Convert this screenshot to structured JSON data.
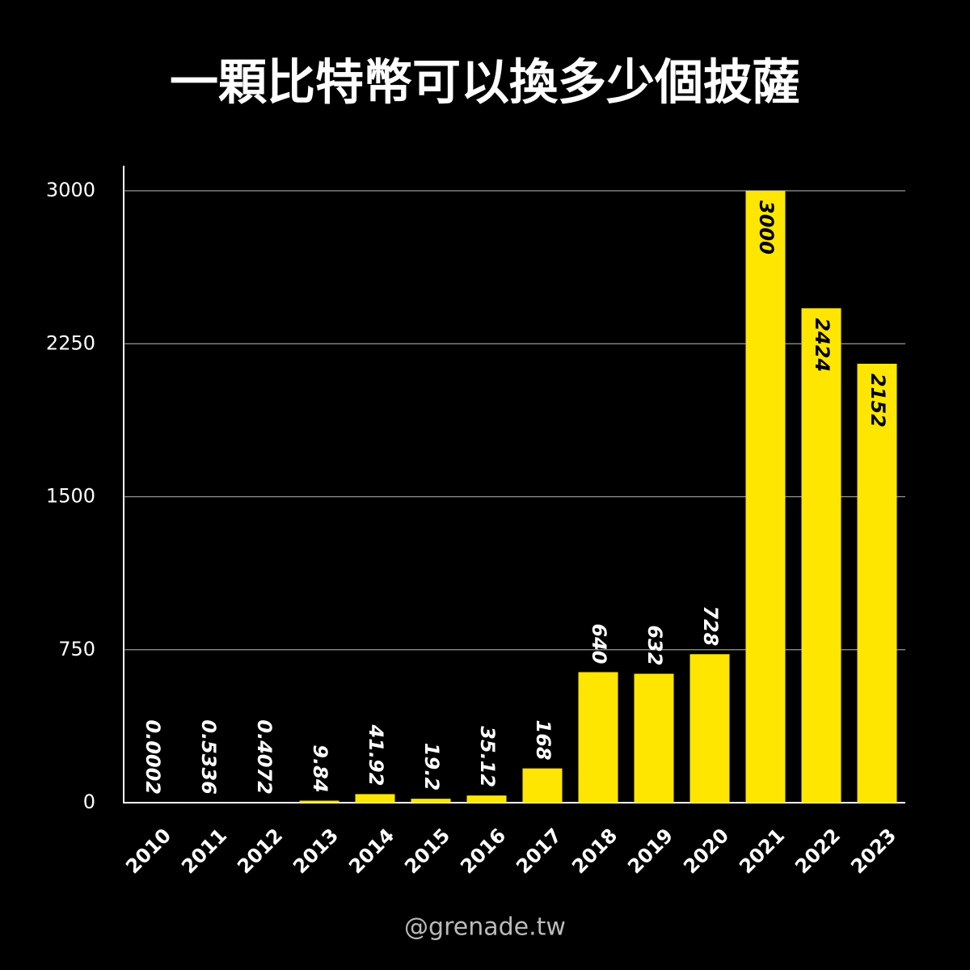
{
  "chart_data": {
    "type": "bar",
    "title": "一顆比特幣可以換多少個披薩",
    "categories": [
      "2010",
      "2011",
      "2012",
      "2013",
      "2014",
      "2015",
      "2016",
      "2017",
      "2018",
      "2019",
      "2020",
      "2021",
      "2022",
      "2023"
    ],
    "values": [
      0.0002,
      0.5336,
      0.4072,
      9.84,
      41.92,
      19.2,
      35.12,
      168,
      640,
      632,
      728,
      3000,
      2424,
      2152
    ],
    "color": "#ffe600",
    "ylim": [
      0,
      3000
    ],
    "yticks": [
      0,
      750,
      1500,
      2250,
      3000
    ],
    "grid": true
  },
  "footer": "@grenade.tw"
}
